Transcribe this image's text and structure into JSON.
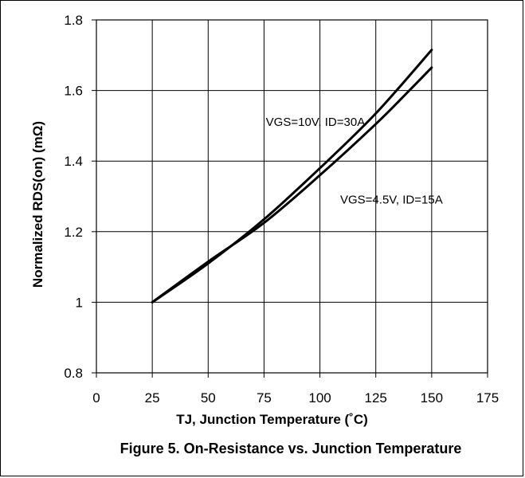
{
  "chart_data": {
    "type": "line",
    "xlabel": "TJ, Junction Temperature (˚C)",
    "ylabel": "Normalized RDS(on) (mΩ)",
    "caption": "Figure 5. On-Resistance vs. Junction Temperature",
    "xlim": [
      0,
      175
    ],
    "ylim": [
      0.8,
      1.8
    ],
    "x_ticks": [
      "0",
      "25",
      "50",
      "75",
      "100",
      "125",
      "150",
      "175"
    ],
    "y_ticks": [
      "0.8",
      "1",
      "1.2",
      "1.4",
      "1.6",
      "1.8"
    ],
    "grid": true,
    "series": [
      {
        "name": "VGS=10V, ID=30A",
        "x": [
          25,
          50,
          75,
          100,
          125,
          150
        ],
        "y": [
          1.0,
          1.11,
          1.235,
          1.38,
          1.535,
          1.715
        ]
      },
      {
        "name": "VGS=4.5V, ID=15A",
        "x": [
          25,
          50,
          75,
          100,
          125,
          140,
          150
        ],
        "y": [
          1.0,
          1.115,
          1.225,
          1.36,
          1.505,
          1.6,
          1.665
        ]
      }
    ],
    "annotations": [
      {
        "text": "VGS=10V, ID=30A",
        "x": 98,
        "y": 1.5
      },
      {
        "text": "VGS=4.5V, ID=15A",
        "x": 132,
        "y": 1.28
      }
    ]
  }
}
